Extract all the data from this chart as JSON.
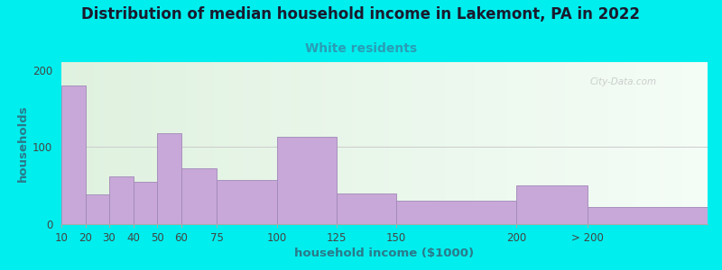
{
  "title": "Distribution of median household income in Lakemont, PA in 2022",
  "subtitle": "White residents",
  "xlabel": "household income ($1000)",
  "ylabel": "households",
  "background_outer": "#00EEEE",
  "bar_color": "#c8a8d8",
  "bar_edge_color": "#a088b8",
  "title_fontsize": 12,
  "subtitle_fontsize": 10,
  "subtitle_color": "#2a9db5",
  "xlabel_fontsize": 9.5,
  "ylabel_fontsize": 9.5,
  "categories": [
    "10",
    "20",
    "30",
    "40",
    "50",
    "60",
    "75",
    "100",
    "125",
    "150",
    "200",
    "> 200"
  ],
  "values": [
    180,
    38,
    62,
    55,
    118,
    72,
    57,
    113,
    40,
    30,
    50,
    22
  ],
  "x_left_edges": [
    10,
    20,
    30,
    40,
    50,
    60,
    75,
    100,
    125,
    150,
    200,
    230
  ],
  "bar_widths": [
    10,
    10,
    10,
    10,
    10,
    15,
    25,
    25,
    25,
    50,
    30,
    50
  ],
  "x_tick_positions": [
    10,
    20,
    30,
    40,
    50,
    60,
    75,
    100,
    125,
    150,
    200,
    230
  ],
  "xlim": [
    10,
    280
  ],
  "ylim": [
    0,
    210
  ],
  "yticks": [
    0,
    100,
    200
  ],
  "watermark": "City-Data.com"
}
